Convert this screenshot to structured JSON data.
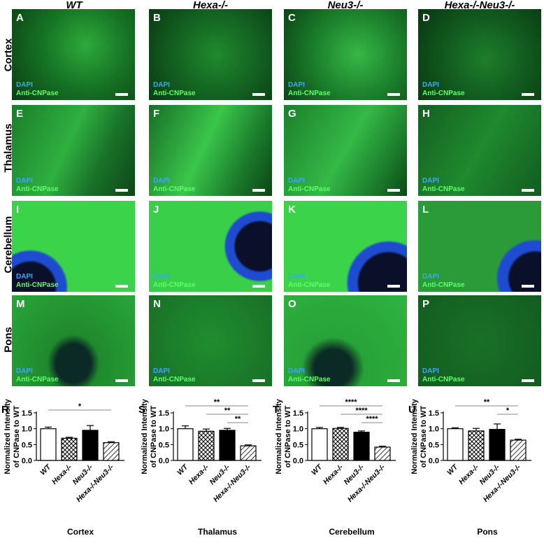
{
  "columns": [
    {
      "label": "WT"
    },
    {
      "label": "Hexa-/-"
    },
    {
      "label": "Neu3-/-"
    },
    {
      "label": "Hexa-/-Neu3-/-"
    }
  ],
  "rows": [
    {
      "label": "Cortex",
      "panels": [
        "A",
        "B",
        "C",
        "D"
      ]
    },
    {
      "label": "Thalamus",
      "panels": [
        "E",
        "F",
        "G",
        "H"
      ]
    },
    {
      "label": "Cerebellum",
      "panels": [
        "I",
        "J",
        "K",
        "L"
      ]
    },
    {
      "label": "Pons",
      "panels": [
        "M",
        "N",
        "O",
        "P"
      ]
    }
  ],
  "stain": {
    "dapi": "DAPI",
    "anti": "Anti-CNPase"
  },
  "colors": {
    "dapi": "#39a7ff",
    "anti": "#5dff6a",
    "tissue_dark": "#0b3a12",
    "tissue_bright": "#2bc43c"
  },
  "chart_data": [
    {
      "type": "bar",
      "panel": "R",
      "title": "Cortex",
      "ylabel_lines": [
        "Normalized Intensity",
        "of CNPase to WT"
      ],
      "categories": [
        "WT",
        "Hexa-/-",
        "Neu3-/-",
        "Hexa-/-Neu3-/-"
      ],
      "values": [
        1.0,
        0.7,
        0.95,
        0.56
      ],
      "errors": [
        0.05,
        0.03,
        0.15,
        0.03
      ],
      "ylim": [
        0,
        1.5
      ],
      "yticks": [
        "0.0",
        "0.5",
        "1.0",
        "1.5"
      ],
      "significance": [
        {
          "from": 0,
          "to": 3,
          "label": "*"
        }
      ]
    },
    {
      "type": "bar",
      "panel": "S",
      "title": "Thalamus",
      "ylabel_lines": [
        "Normalized Intensity",
        "of CNPase to WT"
      ],
      "categories": [
        "WT",
        "Hexa-/-",
        "Neu3-/-",
        "Hexa-/-Neu3-/-"
      ],
      "values": [
        1.0,
        0.92,
        0.95,
        0.46
      ],
      "errors": [
        0.09,
        0.07,
        0.06,
        0.03
      ],
      "ylim": [
        0,
        1.5
      ],
      "yticks": [
        "0.0",
        "0.5",
        "1.0",
        "1.5"
      ],
      "significance": [
        {
          "from": 0,
          "to": 3,
          "label": "**"
        },
        {
          "from": 1,
          "to": 3,
          "label": "**"
        },
        {
          "from": 2,
          "to": 3,
          "label": "**"
        }
      ]
    },
    {
      "type": "bar",
      "panel": "T",
      "title": "Cerebellum",
      "ylabel_lines": [
        "Normalized Intensity",
        "of CNPase to WT"
      ],
      "categories": [
        "WT",
        "Hexa-/-",
        "Neu3-/-",
        "Hexa-/-Neu3-/-"
      ],
      "values": [
        1.0,
        1.01,
        0.89,
        0.42
      ],
      "errors": [
        0.04,
        0.03,
        0.04,
        0.03
      ],
      "ylim": [
        0,
        1.5
      ],
      "yticks": [
        "0.0",
        "0.5",
        "1.0",
        "1.5"
      ],
      "significance": [
        {
          "from": 0,
          "to": 3,
          "label": "****"
        },
        {
          "from": 1,
          "to": 3,
          "label": "****"
        },
        {
          "from": 2,
          "to": 3,
          "label": "****"
        }
      ]
    },
    {
      "type": "bar",
      "panel": "U",
      "title": "Pons",
      "ylabel_lines": [
        "Normalized Intensity",
        "of CNPase to WT"
      ],
      "categories": [
        "WT",
        "Hexa-/-",
        "Neu3-/-",
        "Hexa-/-Neu3-/-"
      ],
      "values": [
        1.0,
        0.93,
        0.98,
        0.64
      ],
      "errors": [
        0.03,
        0.08,
        0.17,
        0.03
      ],
      "ylim": [
        0,
        1.5
      ],
      "yticks": [
        "0.0",
        "0.5",
        "1.0",
        "1.5"
      ],
      "significance": [
        {
          "from": 0,
          "to": 3,
          "label": "**"
        },
        {
          "from": 2,
          "to": 3,
          "label": "*"
        }
      ]
    }
  ]
}
